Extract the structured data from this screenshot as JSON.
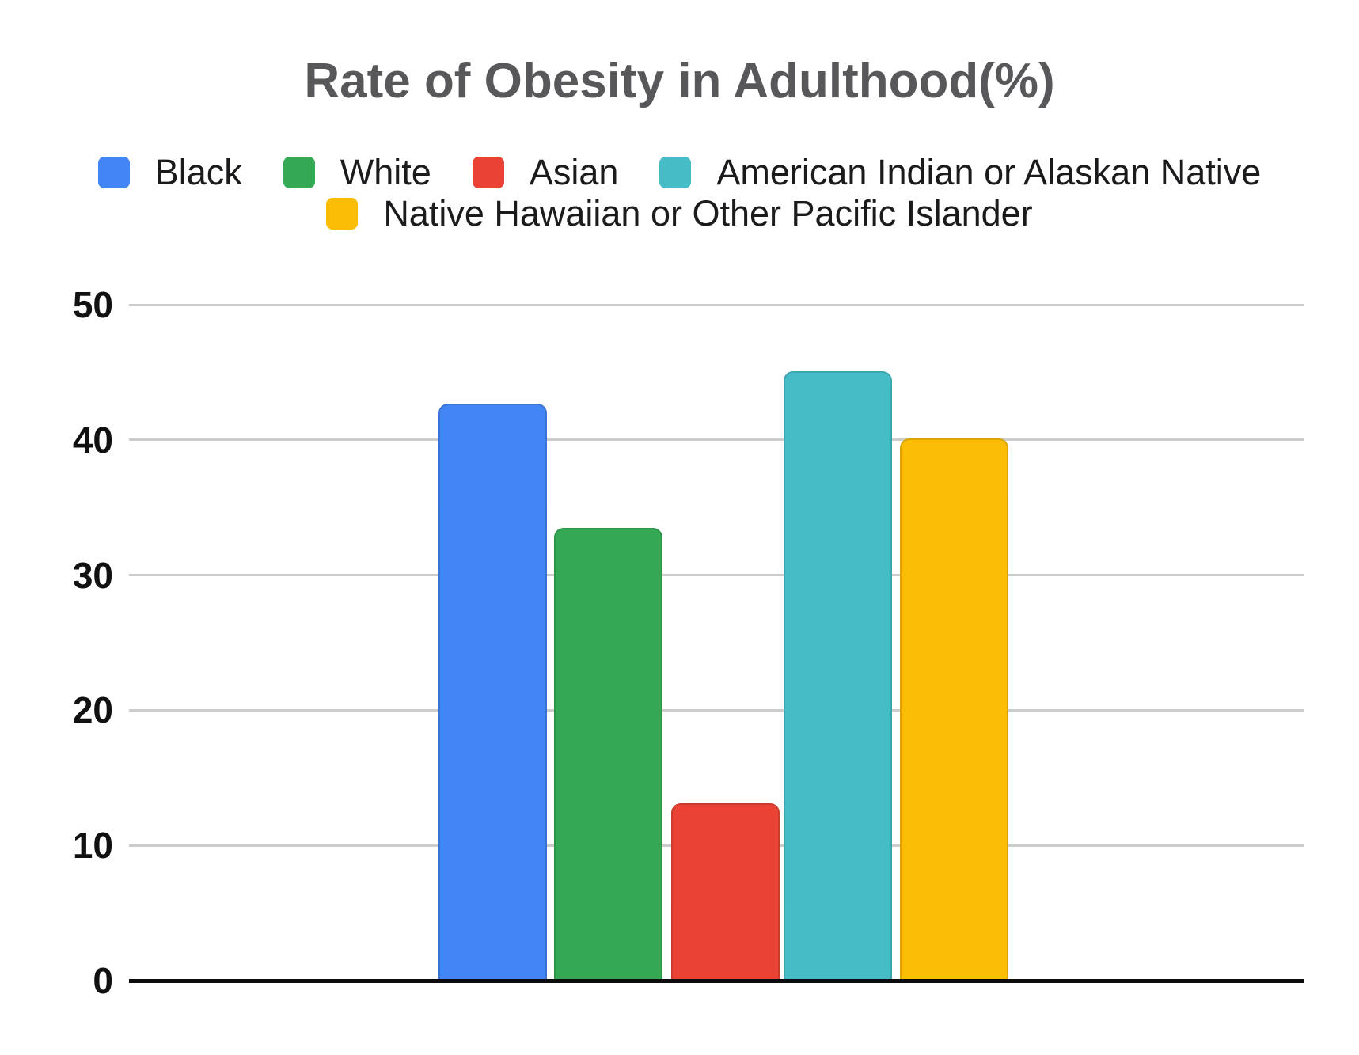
{
  "page": {
    "background": "#ffffff"
  },
  "chart_data": {
    "type": "bar",
    "title": "Rate of Obesity in Adulthood(%)",
    "categories": [
      "Black",
      "White",
      "Asian",
      "American Indian or Alaskan Native",
      "Native Hawaiian or Other Pacific Islander"
    ],
    "values": [
      42.7,
      33.5,
      13.1,
      45.1,
      40.1
    ],
    "series_colors": [
      "#4285F4",
      "#34A853",
      "#EA4335",
      "#46BDC6",
      "#FBBC04"
    ],
    "xlabel": "",
    "ylabel": "",
    "ylim": [
      0,
      50
    ],
    "yticks": [
      0,
      10,
      20,
      30,
      40,
      50
    ],
    "grid": true,
    "x_tick_labels_shown": false,
    "legend_position": "top",
    "legend_rows_item_counts": [
      4,
      1
    ],
    "title_color": "#58585b",
    "legend_text_color": "#1b1b1d",
    "tick_text_color": "#111111",
    "gridline_color": "#cccccc",
    "axis_line_color": "#0b0b0b"
  }
}
